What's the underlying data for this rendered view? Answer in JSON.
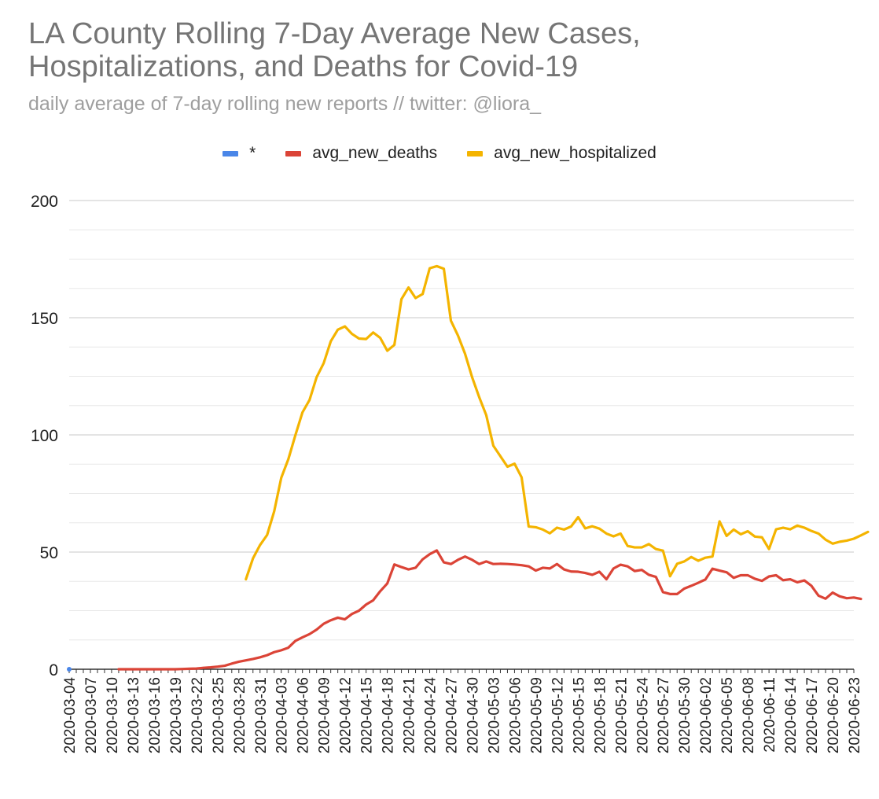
{
  "colors": {
    "series_star": "#4a86e8",
    "series_deaths": "#db4437",
    "series_hospitalized": "#f4b400",
    "grid_major": "#c8c8c8",
    "grid_minor": "#e8e8e8",
    "axis": "#333333",
    "title": "#757575",
    "subtitle": "#9e9e9e"
  },
  "chart_data": {
    "type": "line",
    "title_lines": [
      "LA County Rolling 7-Day Average New Cases,",
      "Hospitalizations, and Deaths for Covid-19"
    ],
    "subtitle": "daily average of 7-day rolling new reports // twitter: @liora_",
    "legend_position": "top",
    "grid": true,
    "ylim": [
      0,
      200
    ],
    "yticks": [
      0,
      50,
      100,
      150,
      200
    ],
    "x_start": "2020-03-04",
    "x_end": "2020-06-23",
    "x_tick_labels": [
      "2020-03-04",
      "2020-03-07",
      "2020-03-10",
      "2020-03-13",
      "2020-03-16",
      "2020-03-19",
      "2020-03-22",
      "2020-03-25",
      "2020-03-28",
      "2020-03-31",
      "2020-04-03",
      "2020-04-06",
      "2020-04-09",
      "2020-04-12",
      "2020-04-15",
      "2020-04-18",
      "2020-04-21",
      "2020-04-24",
      "2020-04-27",
      "2020-04-30",
      "2020-05-03",
      "2020-05-06",
      "2020-05-09",
      "2020-05-12",
      "2020-05-15",
      "2020-05-18",
      "2020-05-21",
      "2020-05-24",
      "2020-05-27",
      "2020-05-30",
      "2020-06-02",
      "2020-06-05",
      "2020-06-08",
      "2020-06-11",
      "2020-06-14",
      "2020-06-17",
      "2020-06-20",
      "2020-06-23"
    ],
    "series": [
      {
        "name": "*",
        "color_key": "series_star",
        "start_date": "2020-03-04",
        "values": [
          0
        ]
      },
      {
        "name": "avg_new_deaths",
        "color_key": "series_deaths",
        "start_date": "2020-03-11",
        "values": [
          0,
          0,
          0,
          0,
          0,
          0,
          0,
          0,
          0,
          0.1,
          0.2,
          0.3,
          0.6,
          0.8,
          1.1,
          1.5,
          2.4,
          3.2,
          3.8,
          4.4,
          5.1,
          6.0,
          7.3,
          8.1,
          9.2,
          12.1,
          13.6,
          15.0,
          16.9,
          19.4,
          20.9,
          22.0,
          21.3,
          23.6,
          25.0,
          27.6,
          29.4,
          33.3,
          36.6,
          44.7,
          43.6,
          42.6,
          43.3,
          46.9,
          49.1,
          50.7,
          45.6,
          44.9,
          46.7,
          48.1,
          46.7,
          44.9,
          46.0,
          44.9,
          45.0,
          44.9,
          44.7,
          44.4,
          43.9,
          42.1,
          43.3,
          43.0,
          44.9,
          42.6,
          41.7,
          41.6,
          41.1,
          40.3,
          41.6,
          38.4,
          43.0,
          44.6,
          43.9,
          41.9,
          42.4,
          40.3,
          39.4,
          32.9,
          32.1,
          32.1,
          34.4,
          35.6,
          36.9,
          38.3,
          42.9,
          42.1,
          41.4,
          39.0,
          40.1,
          40.1,
          38.6,
          37.7,
          39.6,
          40.1,
          38.0,
          38.4,
          37.1,
          37.9,
          35.6,
          31.4,
          30.1,
          32.7,
          31.1,
          30.3,
          30.6,
          30.0
        ]
      },
      {
        "name": "avg_new_hospitalized",
        "color_key": "series_hospitalized",
        "start_date": "2020-03-29",
        "values": [
          38.4,
          47.3,
          53.0,
          57.3,
          67.4,
          81.7,
          89.6,
          99.9,
          109.6,
          114.9,
          124.6,
          130.6,
          139.9,
          144.9,
          146.3,
          143.1,
          141.1,
          140.9,
          143.7,
          141.4,
          135.9,
          138.4,
          157.9,
          162.9,
          158.4,
          160.1,
          171.1,
          172.0,
          170.9,
          148.7,
          142.4,
          134.6,
          124.6,
          116.1,
          108.4,
          95.4,
          90.9,
          86.4,
          87.7,
          81.9,
          60.9,
          60.6,
          59.6,
          58.0,
          60.4,
          59.6,
          60.9,
          64.9,
          60.1,
          61.0,
          60.0,
          57.9,
          56.7,
          57.9,
          52.6,
          52.0,
          52.0,
          53.4,
          51.3,
          50.6,
          39.7,
          45.0,
          46.0,
          47.9,
          46.3,
          47.6,
          48.1,
          63.1,
          56.9,
          59.6,
          57.6,
          58.9,
          56.6,
          56.3,
          51.3,
          59.7,
          60.4,
          59.7,
          61.3,
          60.4,
          59.0,
          57.9,
          55.3,
          53.6,
          54.4,
          54.9,
          55.7,
          57.1,
          58.6
        ]
      }
    ]
  }
}
